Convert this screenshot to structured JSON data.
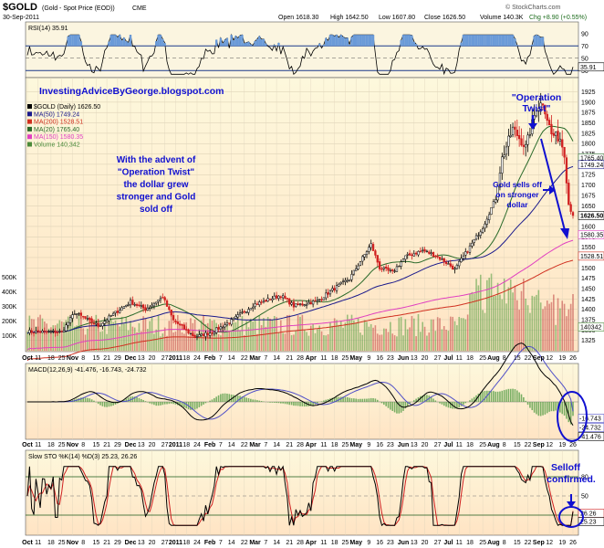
{
  "header": {
    "symbol": "$GOLD",
    "name": "(Gold - Spot Price (EOD))",
    "exchange": "CME",
    "date": "30-Sep-2011",
    "open": "Open 1618.30",
    "high": "High 1642.50",
    "low": "Low 1607.80",
    "close": "Close 1626.50",
    "volume": "Volume 140.3K",
    "chg": "Chg +8.90 (+0.55%)",
    "credit": "© StockCharts.com"
  },
  "panels": {
    "rsi_label": "RSI(14) 35.91",
    "rsi_value_tag": "35.91",
    "main_legend": [
      {
        "text": "$GOLD (Daily) 1626.50",
        "color": "#000000"
      },
      {
        "text": "MA(50) 1749.24",
        "color": "#1a1a8c"
      },
      {
        "text": "MA(200) 1528.51",
        "color": "#d03020"
      },
      {
        "text": "MA(20) 1765.40",
        "color": "#2a6a2a"
      },
      {
        "text": "MA(150) 1580.35",
        "color": "#e040c0"
      },
      {
        "text": "Volume 140,342",
        "color": "#4a8a3a"
      }
    ],
    "macd_label": "MACD(12,26,9) -41.476, -16.743, -24.732",
    "sto_label": "Slow STO %K(14) %D(3) 25.23, 26.26"
  },
  "annotations": {
    "site": "InvestingAdviceByGeorge.blogspot.com",
    "advent": [
      "With the advent of",
      "\"Operation Twist\"",
      "the dollar grew",
      "stronger and Gold",
      "sold off"
    ],
    "op_twist": [
      "\"Operation",
      "Twist\""
    ],
    "gold_sells": [
      "Gold sells off",
      "on stronger",
      "dollar"
    ],
    "selloff": [
      "Selloff",
      "confirmed."
    ]
  },
  "price_tags": [
    {
      "text": "1765.40",
      "value": 1765.4,
      "color": "#2a6a2a"
    },
    {
      "text": "1749.24",
      "value": 1749.24,
      "color": "#1a1a8c"
    },
    {
      "text": "1626.50",
      "value": 1626.5,
      "color": "#000000"
    },
    {
      "text": "1580.35",
      "value": 1580.35,
      "color": "#e040c0"
    },
    {
      "text": "1528.51",
      "value": 1528.51,
      "color": "#d03020"
    },
    {
      "text": "140342",
      "value": 140342,
      "color": "#4a8a3a"
    }
  ],
  "macd_tags": [
    {
      "text": "-16.743",
      "value": -16.743
    },
    {
      "text": "-24.732",
      "value": -24.732
    },
    {
      "text": "-41.476",
      "value": -41.476
    }
  ],
  "sto_tags": [
    {
      "text": "26.26",
      "value": 26.26
    },
    {
      "text": "25.23",
      "value": 25.23
    }
  ],
  "colors": {
    "panel_bg": "#fbf3dc",
    "gradient_top": "#fdf8dc",
    "gradient_bottom": "#ffe7c8",
    "candle_up": "#000000",
    "candle_down": "#d02020",
    "annotation_blue": "#1010d0",
    "volume": "#4a9a3a"
  },
  "chart_data": {
    "type": "line",
    "title": "$GOLD (Gold - Spot Price (EOD)) CME",
    "x_tick_labels": [
      "Oct",
      "11",
      "18",
      "25",
      "Nov",
      "8",
      "15",
      "21",
      "29",
      "Dec",
      "13",
      "20",
      "27",
      "2011",
      "18",
      "24",
      "Feb",
      "7",
      "14",
      "22",
      "Mar",
      "7",
      "14",
      "21",
      "28",
      "Apr",
      "11",
      "18",
      "25",
      "May",
      "9",
      "16",
      "23",
      "Jun",
      "13",
      "20",
      "27",
      "Jul",
      "11",
      "18",
      "25",
      "Aug",
      "8",
      "15",
      "22",
      "Sep",
      "12",
      "19",
      "26"
    ],
    "price": {
      "yticks": [
        1325,
        1350,
        1375,
        1400,
        1425,
        1450,
        1475,
        1500,
        1525,
        1550,
        1575,
        1600,
        1625,
        1650,
        1675,
        1700,
        1725,
        1750,
        1775,
        1800,
        1825,
        1850,
        1875,
        1900,
        1925
      ],
      "ylim": [
        1300,
        1935
      ],
      "monthly_close": [
        {
          "month": "Oct 2010",
          "close": 1346
        },
        {
          "month": "Nov 2010",
          "close": 1385
        },
        {
          "month": "Dec 2010",
          "close": 1421
        },
        {
          "month": "Jan 2011",
          "close": 1333
        },
        {
          "month": "Feb 2011",
          "close": 1410
        },
        {
          "month": "Mar 2011",
          "close": 1439
        },
        {
          "month": "Apr 2011",
          "close": 1557
        },
        {
          "month": "May 2011",
          "close": 1536
        },
        {
          "month": "Jun 2011",
          "close": 1500
        },
        {
          "month": "Jul 2011",
          "close": 1628
        },
        {
          "month": "Aug 2011",
          "close": 1826
        },
        {
          "month": "Sep 2011",
          "close": 1626.5
        }
      ],
      "peak": {
        "date": "Sep 2011",
        "value": 1900
      }
    },
    "rsi": {
      "yticks": [
        30,
        50,
        70,
        90
      ],
      "last": 35.91
    },
    "volume": {
      "yticks": [
        "100K",
        "200K",
        "300K",
        "400K",
        "500K"
      ],
      "last": 140342
    },
    "macd": {
      "macd": -41.476,
      "signal": -16.743,
      "histogram": -24.732
    },
    "slow_sto": {
      "yticks": [
        20,
        50,
        80
      ],
      "k": 25.23,
      "d": 26.26
    }
  }
}
